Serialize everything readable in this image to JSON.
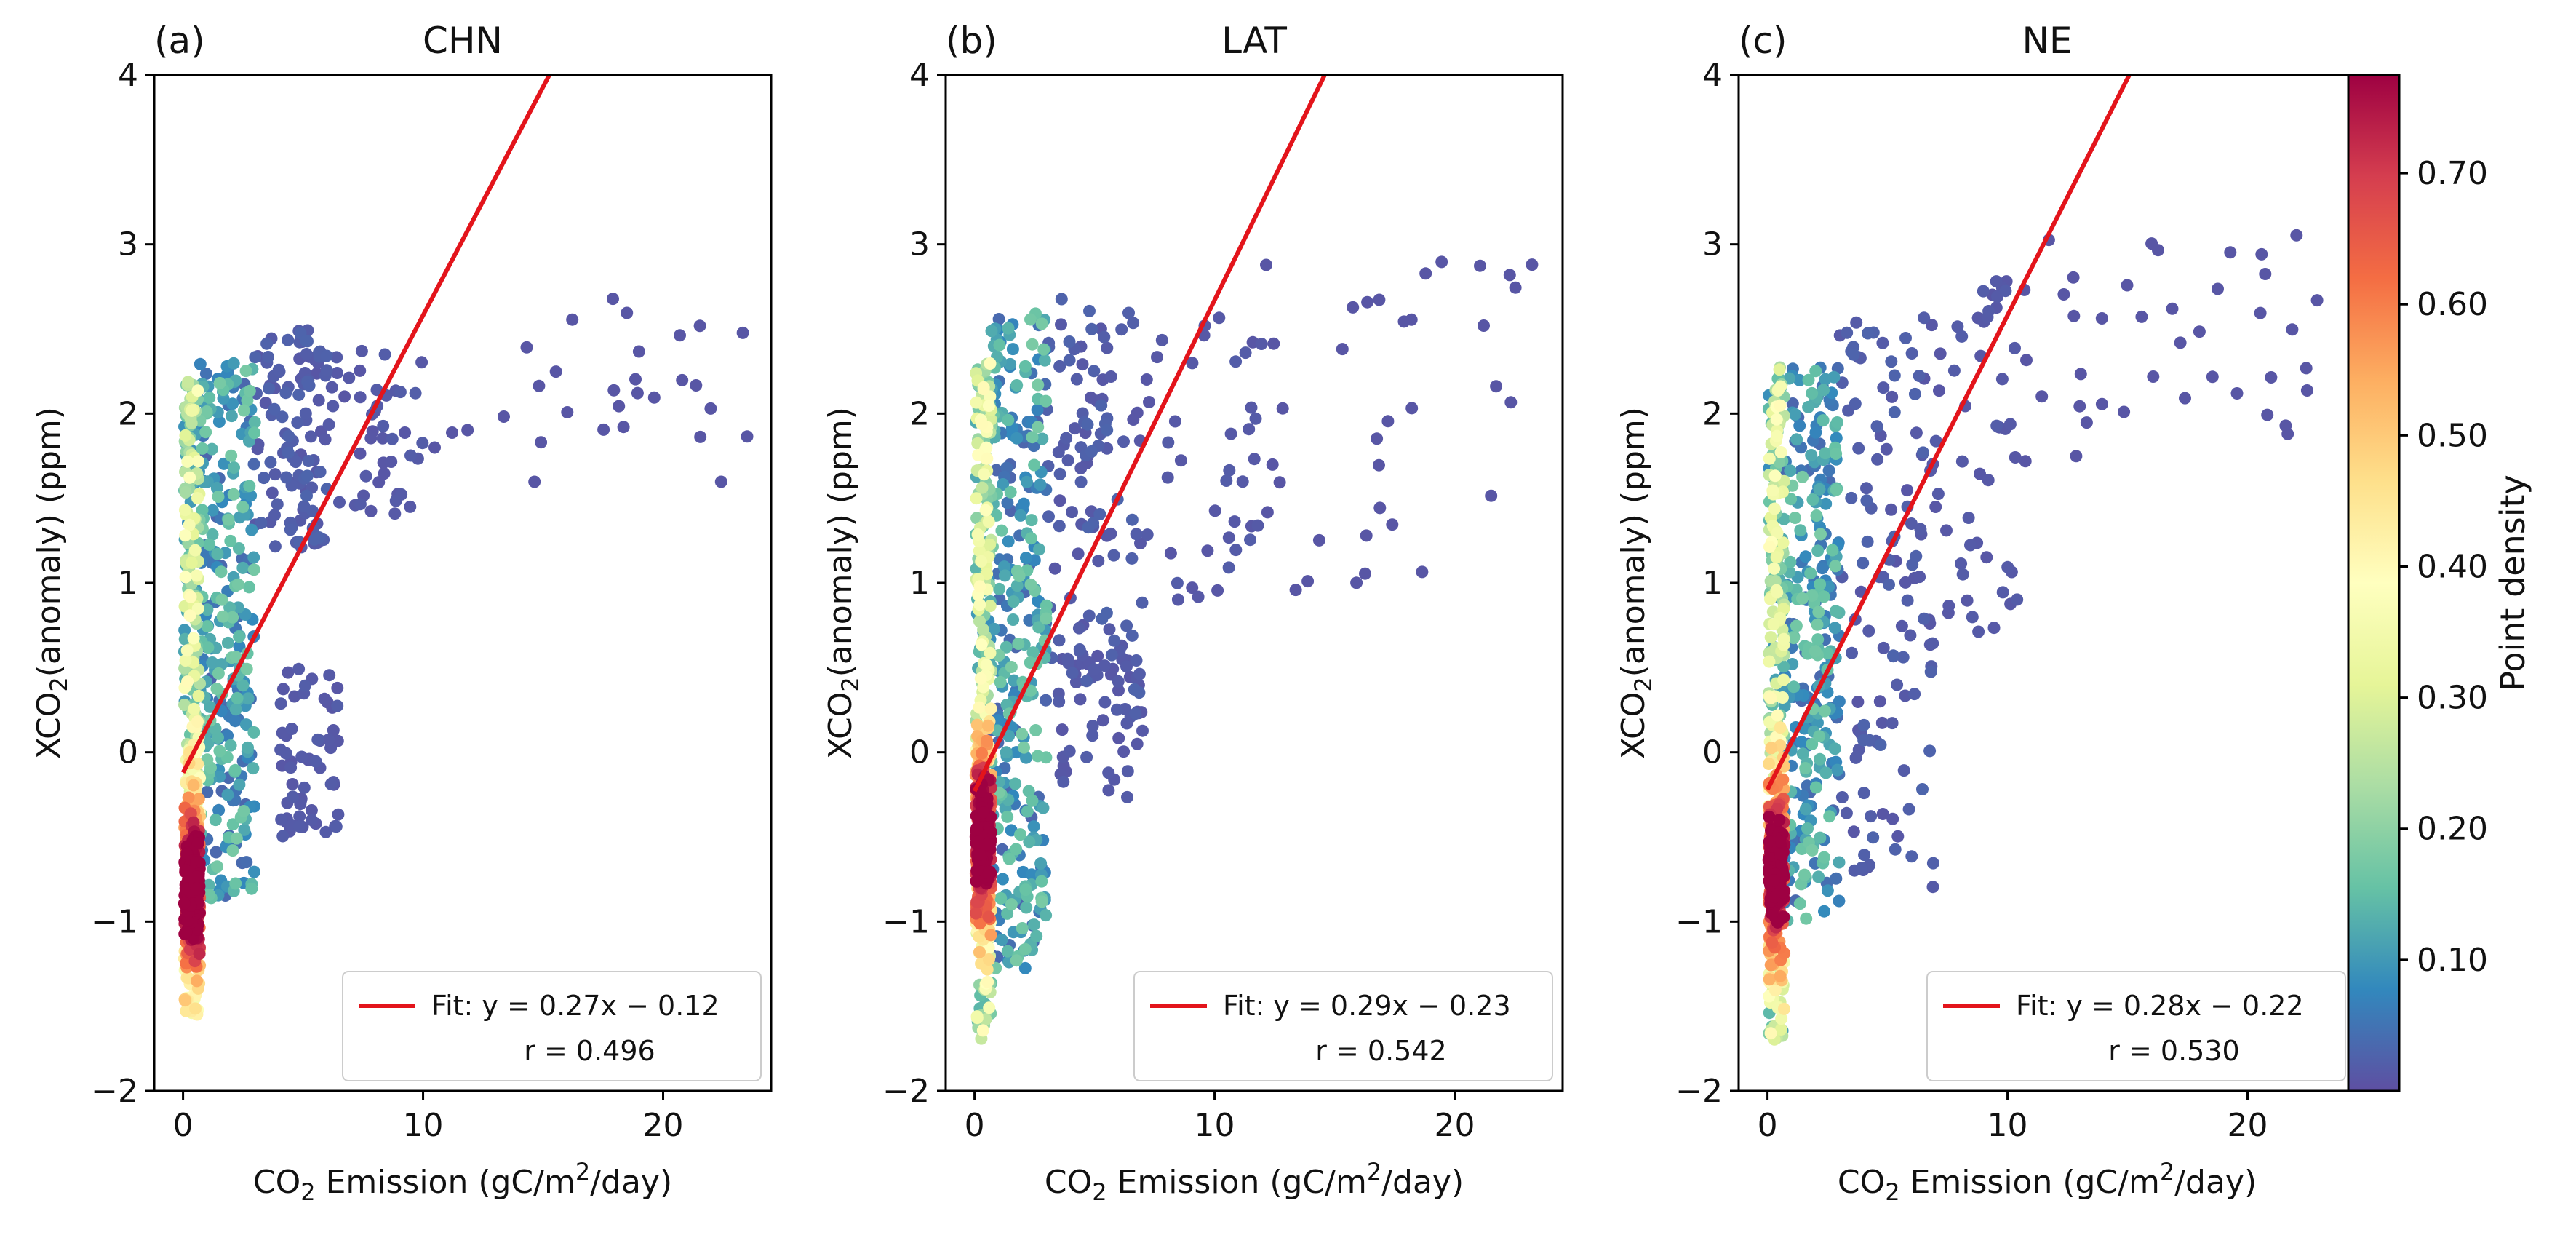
{
  "chart_data": {
    "type": "scatter",
    "description_note": "three scatter panels of XCO2 anomaly vs CO2 emission, colored by point density, with linear fit",
    "colormap": "Spectral_r",
    "colorbar": {
      "label": "Point density",
      "ticks": [
        "0.10",
        "0.20",
        "0.30",
        "0.40",
        "0.50",
        "0.60",
        "0.70"
      ],
      "tick_values": [
        0.1,
        0.2,
        0.3,
        0.4,
        0.5,
        0.6,
        0.7
      ],
      "range": [
        0.0,
        0.775
      ]
    },
    "panels": [
      {
        "tag": "(a)",
        "title": "CHN",
        "xlabel_pre": "CO",
        "xlabel_sub": "2",
        "xlabel_post": " Emission (gC/m",
        "xlabel_sup": "2",
        "xlabel_end": "/day)",
        "ylabel_pre": "XCO",
        "ylabel_sub": "2",
        "ylabel_post": "(anomaly) (ppm)",
        "xlim": [
          -1.2,
          24.5
        ],
        "ylim": [
          -2,
          4
        ],
        "xticks": [
          0,
          10,
          20
        ],
        "xtick_labels": [
          "0",
          "10",
          "20"
        ],
        "yticks": [
          -2,
          -1,
          0,
          1,
          2,
          3,
          4
        ],
        "ytick_labels": [
          "−2",
          "−1",
          "0",
          "1",
          "2",
          "3",
          "4"
        ],
        "fit": {
          "slope": 0.27,
          "intercept": -0.12,
          "x_start": 0,
          "label": "Fit: y = 0.27x − 0.12",
          "r_label": "r = 0.496"
        },
        "clusters": [
          {
            "x": [
              0.05,
              0.7
            ],
            "y": [
              -1.55,
              2.2
            ],
            "n": 520,
            "d": [
              0.08,
              0.4
            ],
            "core_y": -0.8,
            "core_s": 0.35
          },
          {
            "x": [
              0.7,
              3.0
            ],
            "y": [
              -0.9,
              2.3
            ],
            "n": 280,
            "d": [
              0.03,
              0.18
            ]
          },
          {
            "x": [
              3.0,
              6.0
            ],
            "y": [
              1.2,
              2.5
            ],
            "n": 110,
            "d": [
              0.01,
              0.03
            ]
          },
          {
            "x": [
              4.0,
              6.5
            ],
            "y": [
              -0.5,
              0.5
            ],
            "n": 60,
            "d": [
              0.01,
              0.02
            ]
          },
          {
            "x": [
              6.0,
              10.0
            ],
            "y": [
              1.4,
              2.4
            ],
            "n": 45,
            "d": [
              0.01,
              0.02
            ]
          },
          {
            "x": [
              10.0,
              24.0
            ],
            "y": [
              1.5,
              2.8
            ],
            "n": 30,
            "d": [
              0.01,
              0.01
            ]
          }
        ]
      },
      {
        "tag": "(b)",
        "title": "LAT",
        "xlabel_pre": "CO",
        "xlabel_sub": "2",
        "xlabel_post": " Emission (gC/m",
        "xlabel_sup": "2",
        "xlabel_end": "/day)",
        "ylabel_pre": "XCO",
        "ylabel_sub": "2",
        "ylabel_post": "(anomaly) (ppm)",
        "xlim": [
          -1.2,
          24.5
        ],
        "ylim": [
          -2,
          4
        ],
        "xticks": [
          0,
          10,
          20
        ],
        "xtick_labels": [
          "0",
          "10",
          "20"
        ],
        "yticks": [
          -2,
          -1,
          0,
          1,
          2,
          3,
          4
        ],
        "ytick_labels": [
          "−2",
          "−1",
          "0",
          "1",
          "2",
          "3",
          "4"
        ],
        "fit": {
          "slope": 0.29,
          "intercept": -0.23,
          "x_start": 0,
          "label": "Fit: y = 0.29x − 0.23",
          "r_label": "r = 0.542"
        },
        "clusters": [
          {
            "x": [
              0.05,
              0.7
            ],
            "y": [
              -1.7,
              2.3
            ],
            "n": 520,
            "d": [
              0.08,
              0.4
            ],
            "core_y": -0.5,
            "core_s": 0.35
          },
          {
            "x": [
              0.7,
              3.0
            ],
            "y": [
              -1.3,
              2.6
            ],
            "n": 290,
            "d": [
              0.03,
              0.18
            ]
          },
          {
            "x": [
              3.0,
              7.0
            ],
            "y": [
              0.2,
              2.7
            ],
            "n": 110,
            "d": [
              0.01,
              0.03
            ]
          },
          {
            "x": [
              3.5,
              7.0
            ],
            "y": [
              -0.3,
              0.6
            ],
            "n": 50,
            "d": [
              0.01,
              0.02
            ]
          },
          {
            "x": [
              7.0,
              12.0
            ],
            "y": [
              0.9,
              2.6
            ],
            "n": 40,
            "d": [
              0.01,
              0.02
            ]
          },
          {
            "x": [
              12.0,
              23.5
            ],
            "y": [
              0.9,
              2.9
            ],
            "n": 35,
            "d": [
              0.01,
              0.01
            ]
          }
        ]
      },
      {
        "tag": "(c)",
        "title": "NE",
        "xlabel_pre": "CO",
        "xlabel_sub": "2",
        "xlabel_post": " Emission (gC/m",
        "xlabel_sup": "2",
        "xlabel_end": "/day)",
        "ylabel_pre": "XCO",
        "ylabel_sub": "2",
        "ylabel_post": "(anomaly) (ppm)",
        "xlim": [
          -1.2,
          24.5
        ],
        "ylim": [
          -2,
          4
        ],
        "xticks": [
          0,
          10,
          20
        ],
        "xtick_labels": [
          "0",
          "10",
          "20"
        ],
        "yticks": [
          -2,
          -1,
          0,
          1,
          2,
          3,
          4
        ],
        "ytick_labels": [
          "−2",
          "−1",
          "0",
          "1",
          "2",
          "3",
          "4"
        ],
        "fit": {
          "slope": 0.28,
          "intercept": -0.22,
          "x_start": 0,
          "label": "Fit: y = 0.28x − 0.22",
          "r_label": "r = 0.530"
        },
        "clusters": [
          {
            "x": [
              0.05,
              0.7
            ],
            "y": [
              -1.7,
              2.3
            ],
            "n": 520,
            "d": [
              0.08,
              0.4
            ],
            "core_y": -0.7,
            "core_s": 0.35
          },
          {
            "x": [
              0.7,
              3.0
            ],
            "y": [
              -1.0,
              2.3
            ],
            "n": 280,
            "d": [
              0.03,
              0.18
            ]
          },
          {
            "x": [
              3.0,
              7.0
            ],
            "y": [
              -0.8,
              2.6
            ],
            "n": 120,
            "d": [
              0.01,
              0.03
            ]
          },
          {
            "x": [
              7.0,
              10.5
            ],
            "y": [
              0.7,
              2.8
            ],
            "n": 50,
            "d": [
              0.01,
              0.02
            ]
          },
          {
            "x": [
              10.5,
              23.5
            ],
            "y": [
              1.6,
              3.1
            ],
            "n": 40,
            "d": [
              0.01,
              0.01
            ]
          }
        ]
      }
    ]
  }
}
